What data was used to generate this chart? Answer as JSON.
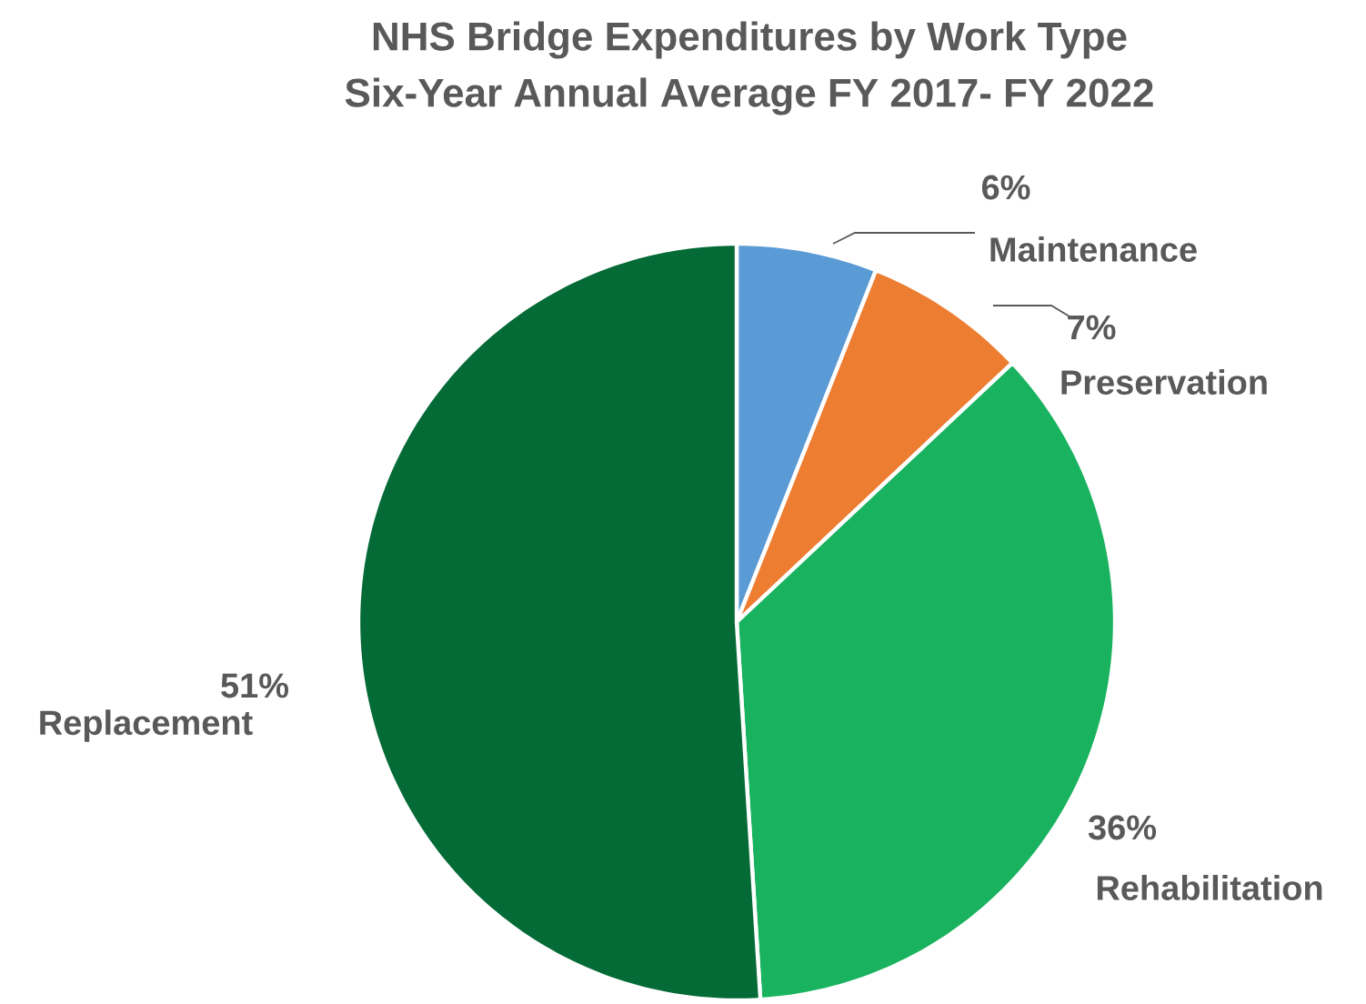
{
  "chart_data": {
    "type": "pie",
    "title": "NHS Bridge Expenditures by Work Type",
    "subtitle": "Six-Year Annual Average FY 2017- FY 2022",
    "categories": [
      "Maintenance",
      "Preservation",
      "Rehabilitation",
      "Replacement"
    ],
    "values": [
      6,
      7,
      36,
      51
    ],
    "value_labels": [
      "6%",
      "7%",
      "36%",
      "51%"
    ],
    "colors": [
      "#5b9bd5",
      "#ed7d31",
      "#19b35f",
      "#046a36"
    ]
  }
}
